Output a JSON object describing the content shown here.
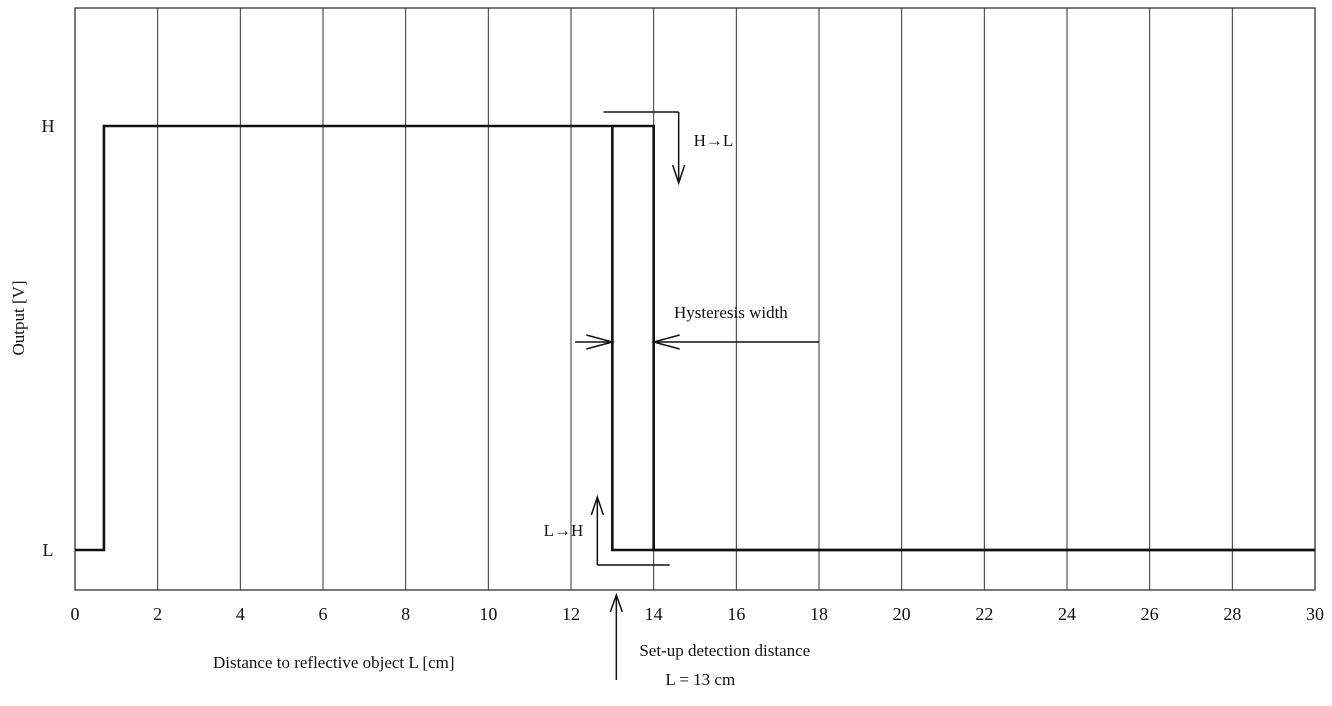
{
  "chart_data": {
    "type": "line",
    "title": "",
    "xlabel": "Distance to reflective object  L [cm]",
    "ylabel": "Output  [V]",
    "xlim": [
      0,
      30
    ],
    "x_ticks": [
      0,
      2,
      4,
      6,
      8,
      10,
      12,
      14,
      16,
      18,
      20,
      22,
      24,
      26,
      28,
      30
    ],
    "y_levels": [
      "L",
      "H"
    ],
    "grid": "vertical",
    "series": [
      {
        "name": "",
        "points": [
          [
            0,
            "L"
          ],
          [
            0.7,
            "L"
          ],
          [
            0.7,
            "H"
          ],
          [
            14,
            "H"
          ],
          [
            14,
            "L"
          ],
          [
            30,
            "L"
          ]
        ]
      },
      {
        "name": "",
        "points": [
          [
            13,
            "H"
          ],
          [
            13,
            "L"
          ],
          [
            30,
            "L"
          ]
        ]
      }
    ],
    "annotations": {
      "h_to_l": "H→L",
      "l_to_h": "L→H",
      "hysteresis": "Hysteresis width",
      "setup_line1": "Set-up detection distance",
      "setup_line2": "L = 13 cm"
    },
    "setup_distance": 13,
    "hysteresis_range": [
      13,
      14
    ]
  }
}
